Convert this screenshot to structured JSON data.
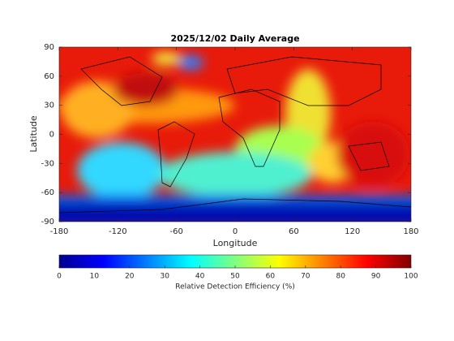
{
  "chart_data": {
    "type": "map",
    "title": "2025/12/02 Daily Average",
    "xlabel": "Longitude",
    "ylabel": "Latitude",
    "xlim": [
      -180,
      180
    ],
    "xticks": [
      -180,
      -120,
      -60,
      0,
      60,
      120,
      180
    ],
    "ylim": [
      -90,
      90
    ],
    "yticks": [
      -90,
      -60,
      -30,
      0,
      30,
      60,
      90
    ],
    "colorbar": {
      "label": "Relative Detection Efficiency (%)",
      "lim": [
        0,
        100
      ],
      "ticks": [
        0,
        10,
        20,
        30,
        40,
        50,
        60,
        70,
        80,
        90,
        100
      ]
    }
  }
}
